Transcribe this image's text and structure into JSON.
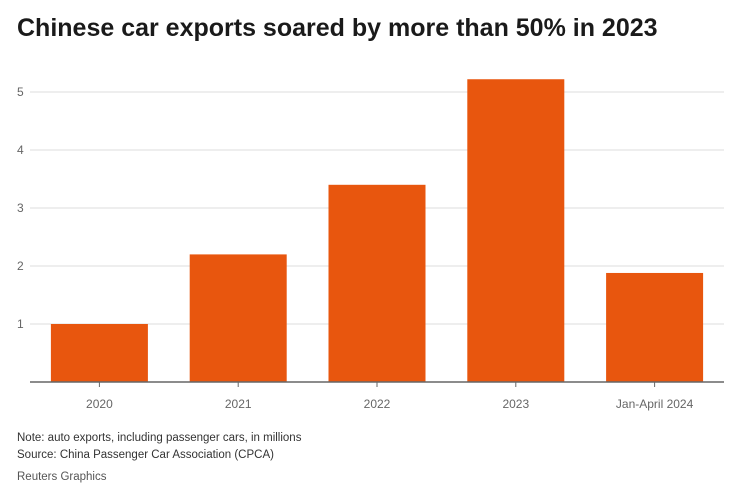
{
  "title": "Chinese car exports soared by more than 50% in 2023",
  "chart_data": {
    "type": "bar",
    "categories": [
      "2020",
      "2021",
      "2022",
      "2023",
      "Jan-April 2024"
    ],
    "values": [
      1.0,
      2.2,
      3.4,
      5.22,
      1.88
    ],
    "yticks": [
      1,
      2,
      3,
      4,
      5
    ],
    "ylim": [
      0,
      5.5
    ],
    "grid": true,
    "bar_color": "#e8560e",
    "grid_color": "#dddddd",
    "axis_color": "#666666",
    "tick_label_color": "#666666"
  },
  "notes": {
    "note": "Note: auto exports, including passenger cars, in millions",
    "source": "Source: China Passenger Car Association (CPCA)"
  },
  "credit": "Reuters Graphics"
}
